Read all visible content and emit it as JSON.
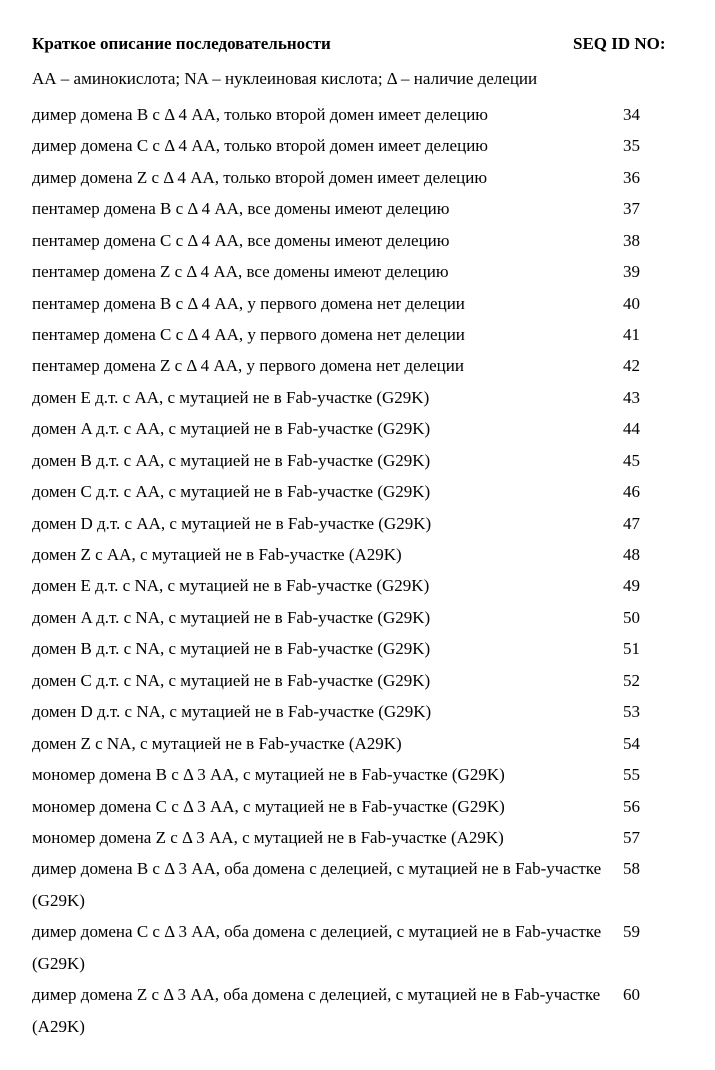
{
  "header": {
    "description_label": "Краткое описание последовательности",
    "seq_label": "SEQ ID NO:"
  },
  "legend": "АА – аминокислота; NA – нуклеиновая кислота; Δ – наличие делеции",
  "rows": [
    {
      "desc": "димер домена B с Δ 4 АА, только второй домен имеет делецию",
      "id": "34"
    },
    {
      "desc": "димер домена C с Δ 4 АА, только второй домен имеет делецию",
      "id": "35"
    },
    {
      "desc": "димер домена Z с Δ 4 АА, только второй домен имеет делецию",
      "id": "36"
    },
    {
      "desc": "пентамер домена B с Δ 4 АА, все домены имеют делецию",
      "id": "37"
    },
    {
      "desc": "пентамер домена C с Δ 4 АА, все домены имеют делецию",
      "id": "38"
    },
    {
      "desc": "пентамер домена Z с Δ 4 АА, все домены имеют делецию",
      "id": "39"
    },
    {
      "desc": "пентамер домена B с Δ 4 АА, у первого домена нет делеции",
      "id": "40"
    },
    {
      "desc": "пентамер домена C с Δ 4 АА, у первого домена нет делеции",
      "id": "41"
    },
    {
      "desc": "пентамер домена Z с Δ 4 АА, у первого домена нет делеции",
      "id": "42"
    },
    {
      "desc": "домен E д.т. с АА, с мутацией не в Fab-участке (G29K)",
      "id": "43"
    },
    {
      "desc": "домен A д.т. с АА, с мутацией не в Fab-участке (G29K)",
      "id": "44"
    },
    {
      "desc": "домен B д.т. с АА, с мутацией не в Fab-участке (G29K)",
      "id": "45"
    },
    {
      "desc": "домен C д.т. с АА, с мутацией не в Fab-участке (G29K)",
      "id": "46"
    },
    {
      "desc": "домен D д.т. с АА, с мутацией не в Fab-участке (G29K)",
      "id": "47"
    },
    {
      "desc": "домен Z с АА, с мутацией не в Fab-участке (A29K)",
      "id": "48"
    },
    {
      "desc": "домен E д.т. с NA, с мутацией не в Fab-участке (G29K)",
      "id": "49"
    },
    {
      "desc": "домен A д.т. с NA, с мутацией не в Fab-участке (G29K)",
      "id": "50"
    },
    {
      "desc": "домен B д.т. с NA, с мутацией не в Fab-участке (G29K)",
      "id": "51"
    },
    {
      "desc": "домен C д.т. с NA, с мутацией не в Fab-участке (G29K)",
      "id": "52"
    },
    {
      "desc": "домен D д.т. с NA, с мутацией не в Fab-участке (G29K)",
      "id": "53"
    },
    {
      "desc": "домен Z с NA, с мутацией не в Fab-участке (A29K)",
      "id": "54"
    },
    {
      "desc": "мономер домена B с Δ 3 АА, с мутацией не в Fab-участке (G29K)",
      "id": "55"
    },
    {
      "desc": "мономер домена C с Δ 3 АА, с мутацией не в Fab-участке (G29K)",
      "id": "56"
    },
    {
      "desc": "мономер домена Z с Δ 3 АА, с мутацией не в Fab-участке (A29K)",
      "id": "57"
    },
    {
      "desc": "димер домена B с Δ 3 АА, оба домена с делецией, с мутацией не в Fab-участке (G29K)",
      "id": "58"
    },
    {
      "desc": "димер домена C с Δ 3 АА, оба домена с делецией, с мутацией не в Fab-участке (G29K)",
      "id": "59"
    },
    {
      "desc": "димер домена Z с Δ 3 АА, оба домена с делецией, с мутацией не в Fab-участке (A29K)",
      "id": "60"
    }
  ]
}
